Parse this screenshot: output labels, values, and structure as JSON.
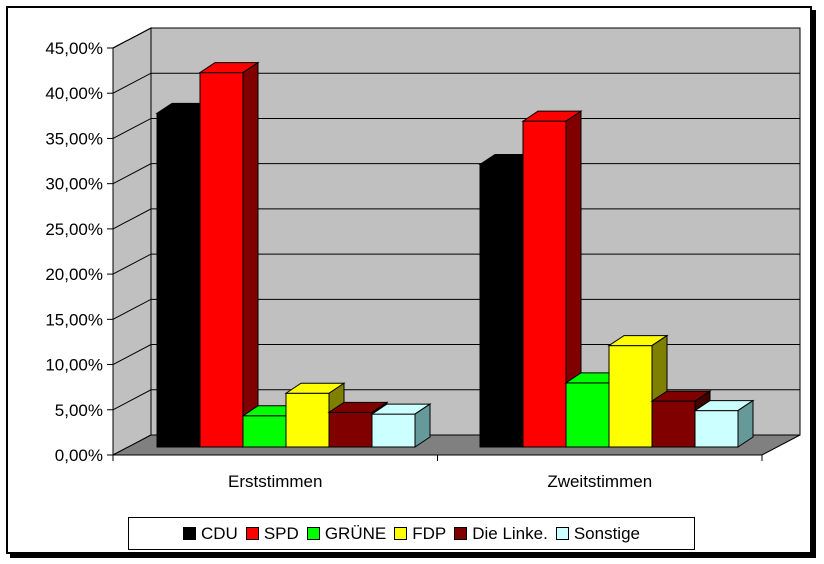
{
  "chart_data": {
    "type": "bar",
    "categories": [
      "Erststimmen",
      "Zweitstimmen"
    ],
    "series": [
      {
        "name": "CDU",
        "values": [
          38.5,
          32.6
        ],
        "color": "#000000",
        "side": "#000000"
      },
      {
        "name": "SPD",
        "values": [
          43.2,
          37.6
        ],
        "color": "#ff0000",
        "side": "#800000"
      },
      {
        "name": "GRÜNE",
        "values": [
          3.6,
          7.4
        ],
        "color": "#00ff00",
        "side": "#008000"
      },
      {
        "name": "FDP",
        "values": [
          6.2,
          11.7
        ],
        "color": "#ffff00",
        "side": "#808000"
      },
      {
        "name": "Die Linke.",
        "values": [
          4.0,
          5.3
        ],
        "color": "#800000",
        "side": "#400000"
      },
      {
        "name": "Sonstige",
        "values": [
          3.8,
          4.2
        ],
        "color": "#ccffff",
        "side": "#669999"
      }
    ],
    "yticks": [
      "0,00%",
      "5,00%",
      "10,00%",
      "15,00%",
      "20,00%",
      "25,00%",
      "30,00%",
      "35,00%",
      "40,00%",
      "45,00%"
    ],
    "ylim": [
      0,
      45
    ],
    "grid": true,
    "legend_position": "bottom"
  }
}
